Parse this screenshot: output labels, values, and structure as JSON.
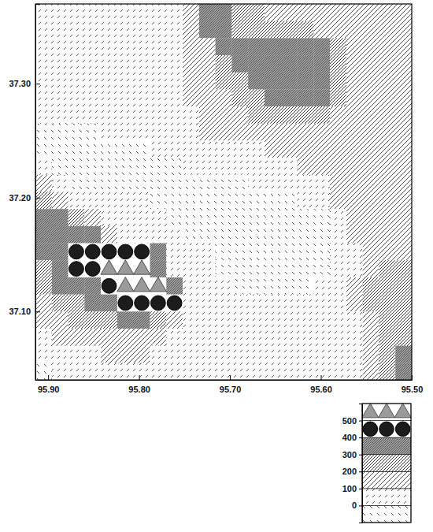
{
  "chart_data": {
    "type": "heatmap",
    "x": [
      95.905,
      95.887,
      95.869,
      95.851,
      95.833,
      95.815,
      95.797,
      95.779,
      95.761,
      95.743,
      95.725,
      95.707,
      95.689,
      95.671,
      95.653,
      95.635,
      95.617,
      95.599,
      95.581,
      95.563,
      95.545,
      95.527,
      95.509
    ],
    "y": [
      37.3625,
      37.3475,
      37.3325,
      37.3175,
      37.3025,
      37.2875,
      37.2725,
      37.2575,
      37.2425,
      37.2275,
      37.2125,
      37.1975,
      37.1825,
      37.1675,
      37.1525,
      37.1375,
      37.1225,
      37.1075,
      37.0925,
      37.0775,
      37.0625,
      37.0475
    ],
    "z": [
      [
        50,
        50,
        50,
        50,
        50,
        50,
        50,
        50,
        50,
        150,
        350,
        350,
        250,
        250,
        150,
        150,
        150,
        150,
        150,
        150,
        150,
        150,
        150
      ],
      [
        50,
        50,
        50,
        50,
        50,
        50,
        50,
        50,
        50,
        150,
        350,
        350,
        250,
        250,
        250,
        250,
        250,
        150,
        150,
        150,
        150,
        150,
        150
      ],
      [
        50,
        50,
        50,
        50,
        50,
        50,
        50,
        50,
        50,
        150,
        150,
        350,
        350,
        350,
        350,
        350,
        350,
        350,
        250,
        150,
        150,
        150,
        150
      ],
      [
        50,
        50,
        50,
        50,
        50,
        50,
        50,
        50,
        50,
        150,
        150,
        250,
        350,
        350,
        350,
        350,
        350,
        350,
        250,
        150,
        150,
        150,
        150
      ],
      [
        50,
        50,
        50,
        50,
        50,
        50,
        50,
        50,
        50,
        150,
        150,
        250,
        250,
        350,
        350,
        350,
        350,
        350,
        250,
        150,
        150,
        150,
        150
      ],
      [
        50,
        50,
        50,
        50,
        50,
        50,
        50,
        50,
        50,
        150,
        150,
        150,
        250,
        250,
        350,
        350,
        350,
        350,
        250,
        150,
        150,
        150,
        150
      ],
      [
        50,
        50,
        50,
        50,
        50,
        50,
        50,
        50,
        50,
        50,
        150,
        150,
        150,
        250,
        250,
        250,
        250,
        250,
        150,
        150,
        150,
        150,
        150
      ],
      [
        -50,
        -50,
        -50,
        -50,
        50,
        50,
        50,
        50,
        50,
        50,
        150,
        150,
        150,
        150,
        150,
        150,
        150,
        150,
        150,
        150,
        150,
        150,
        150
      ],
      [
        -50,
        -50,
        -50,
        -50,
        -50,
        -50,
        -50,
        50,
        50,
        50,
        50,
        50,
        50,
        50,
        150,
        150,
        150,
        150,
        150,
        150,
        150,
        150,
        150
      ],
      [
        50,
        -50,
        -50,
        -50,
        -50,
        -50,
        -50,
        -50,
        -50,
        50,
        50,
        50,
        50,
        50,
        50,
        50,
        150,
        150,
        150,
        150,
        150,
        150,
        150
      ],
      [
        150,
        50,
        -50,
        -50,
        -50,
        -50,
        -50,
        -50,
        -50,
        -50,
        -50,
        -50,
        -50,
        50,
        50,
        50,
        50,
        50,
        150,
        150,
        150,
        150,
        150
      ],
      [
        250,
        150,
        50,
        50,
        50,
        50,
        50,
        -50,
        -50,
        -50,
        -50,
        -50,
        -50,
        -50,
        -50,
        -50,
        50,
        50,
        150,
        150,
        150,
        150,
        150
      ],
      [
        350,
        350,
        250,
        150,
        50,
        50,
        50,
        50,
        -50,
        -50,
        -50,
        -50,
        -50,
        -50,
        -50,
        -50,
        -50,
        -50,
        50,
        150,
        150,
        150,
        150
      ],
      [
        350,
        350,
        350,
        350,
        150,
        50,
        50,
        50,
        50,
        -50,
        -50,
        -50,
        -50,
        -50,
        -50,
        -50,
        -50,
        -50,
        50,
        150,
        150,
        150,
        150
      ],
      [
        350,
        350,
        450,
        450,
        450,
        450,
        450,
        350,
        50,
        50,
        50,
        -50,
        -50,
        -50,
        -50,
        -50,
        -50,
        -50,
        50,
        50,
        150,
        150,
        150
      ],
      [
        250,
        350,
        450,
        450,
        550,
        550,
        550,
        350,
        50,
        50,
        50,
        -50,
        -50,
        -50,
        -50,
        -50,
        -50,
        -50,
        50,
        50,
        150,
        250,
        250
      ],
      [
        250,
        350,
        350,
        350,
        450,
        550,
        550,
        550,
        350,
        50,
        50,
        50,
        -50,
        -50,
        -50,
        -50,
        -50,
        50,
        50,
        150,
        250,
        250,
        250
      ],
      [
        150,
        250,
        250,
        350,
        350,
        450,
        450,
        450,
        450,
        50,
        50,
        50,
        50,
        50,
        50,
        50,
        50,
        50,
        50,
        150,
        250,
        250,
        250
      ],
      [
        150,
        150,
        250,
        250,
        250,
        350,
        350,
        250,
        150,
        50,
        50,
        50,
        50,
        50,
        50,
        50,
        50,
        50,
        50,
        50,
        150,
        250,
        250
      ],
      [
        50,
        150,
        150,
        150,
        150,
        150,
        150,
        150,
        50,
        50,
        50,
        50,
        50,
        50,
        50,
        50,
        50,
        50,
        50,
        50,
        150,
        250,
        250
      ],
      [
        50,
        50,
        50,
        50,
        150,
        150,
        150,
        50,
        50,
        50,
        50,
        50,
        50,
        50,
        50,
        50,
        50,
        50,
        50,
        50,
        150,
        250,
        350
      ],
      [
        -50,
        50,
        50,
        50,
        50,
        50,
        50,
        50,
        50,
        50,
        50,
        50,
        50,
        50,
        50,
        50,
        50,
        50,
        50,
        50,
        150,
        250,
        350
      ]
    ],
    "xlim": [
      95.914,
      95.5
    ],
    "ylim": [
      37.04,
      37.37
    ],
    "xticks": [
      {
        "value": 95.9,
        "label": "95.90"
      },
      {
        "value": 95.8,
        "label": "95.80"
      },
      {
        "value": 95.7,
        "label": "95.70"
      },
      {
        "value": 95.6,
        "label": "95.60"
      },
      {
        "value": 95.5,
        "label": "95.50"
      }
    ],
    "yticks": [
      {
        "value": 37.1,
        "label": "37.10"
      },
      {
        "value": 37.2,
        "label": "37.20"
      },
      {
        "value": 37.3,
        "label": "37.30"
      }
    ],
    "colorbar": {
      "range": [
        -100,
        600
      ],
      "ticks": [
        0,
        100,
        200,
        300,
        400,
        500
      ]
    }
  }
}
